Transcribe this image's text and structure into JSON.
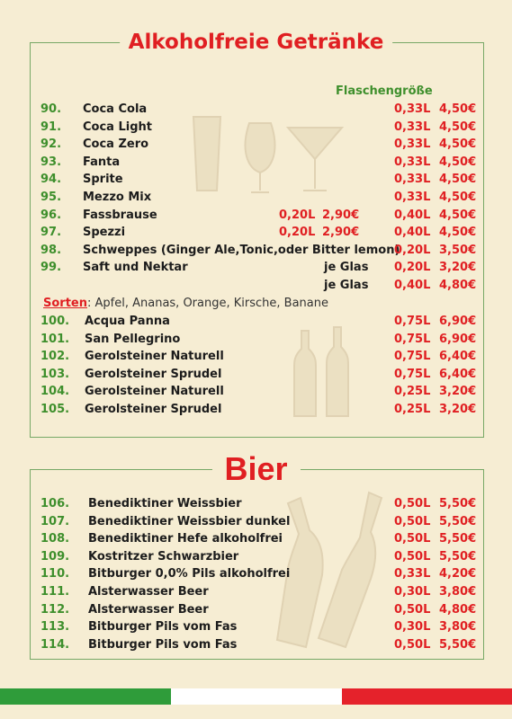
{
  "section1": {
    "title": "Alkoholfreie Getränke",
    "column_header": "Flaschengröße",
    "items": [
      {
        "num": "90.",
        "name": "Coca Cola",
        "vol": "0,33L",
        "price": "4,50€"
      },
      {
        "num": "91.",
        "name": "Coca Light",
        "vol": "0,33L",
        "price": "4,50€"
      },
      {
        "num": "92.",
        "name": "Coca Zero",
        "vol": "0,33L",
        "price": "4,50€"
      },
      {
        "num": "93.",
        "name": "Fanta",
        "vol": "0,33L",
        "price": "4,50€"
      },
      {
        "num": "94.",
        "name": "Sprite",
        "vol": "0,33L",
        "price": "4,50€"
      },
      {
        "num": "95.",
        "name": "Mezzo Mix",
        "vol": "0,33L",
        "price": "4,50€"
      },
      {
        "num": "96.",
        "name": "Fassbrause",
        "vol_small": "0,20L",
        "price_small": "2,90€",
        "vol": "0,40L",
        "price": "4,50€"
      },
      {
        "num": "97.",
        "name": "Spezzi",
        "vol_small": "0,20L",
        "price_small": "2,90€",
        "vol": "0,40L",
        "price": "4,50€"
      },
      {
        "num": "98.",
        "name": "Schweppes (Ginger Ale,Tonic,oder Bitter lemon)",
        "vol": "0,20L",
        "price": "3,50€"
      },
      {
        "num": "99.",
        "name": "Saft und Nektar",
        "glas": "je Glas",
        "vol": "0,20L",
        "price": "3,20€"
      },
      {
        "num": "",
        "name": "",
        "glas": "je Glas",
        "vol": "0,40L",
        "price": "4,80€"
      }
    ],
    "sorts_label": "Sorten",
    "sorts_text": ": Apfel, Ananas, Orange, Kirsche, Banane",
    "items2": [
      {
        "num": "100.",
        "name": "Acqua Panna",
        "vol": "0,75L",
        "price": "6,90€"
      },
      {
        "num": "101.",
        "name": "San Pellegrino",
        "vol": "0,75L",
        "price": "6,90€"
      },
      {
        "num": "102.",
        "name": "Gerolsteiner Naturell",
        "vol": "0,75L",
        "price": "6,40€"
      },
      {
        "num": "103.",
        "name": "Gerolsteiner Sprudel",
        "vol": "0,75L",
        "price": "6,40€"
      },
      {
        "num": "104.",
        "name": "Gerolsteiner Naturell",
        "vol": "0,25L",
        "price": "3,20€"
      },
      {
        "num": "105.",
        "name": "Gerolsteiner Sprudel",
        "vol": "0,25L",
        "price": "3,20€"
      }
    ]
  },
  "section2": {
    "title": "Bier",
    "items": [
      {
        "num": "106.",
        "name": "Benediktiner    Weissbier",
        "vol": "0,50L",
        "price": "5,50€"
      },
      {
        "num": "107.",
        "name": "Benediktiner   Weissbier dunkel",
        "vol": "0,50L",
        "price": "5,50€"
      },
      {
        "num": "108.",
        "name": "Benediktiner    Hefe alkoholfrei",
        "vol": "0,50L",
        "price": "5,50€"
      },
      {
        "num": "109.",
        "name": "Kostritzer Schwarzbier",
        "vol": "0,50L",
        "price": "5,50€"
      },
      {
        "num": "110.",
        "name": "Bitburger 0,0% Pils alkoholfrei",
        "vol": "0,33L",
        "price": "4,20€"
      },
      {
        "num": "111.",
        "name": "Alsterwasser Beer",
        "vol": "0,30L",
        "price": "3,80€"
      },
      {
        "num": "112.",
        "name": "Alsterwasser Beer",
        "vol": "0,50L",
        "price": "4,80€"
      },
      {
        "num": "113.",
        "name": "Bitburger Pils vom Fas",
        "vol": "0,30L",
        "price": "3,80€"
      },
      {
        "num": "114.",
        "name": "Bitburger Pils vom Fas",
        "vol": "0,50L",
        "price": "5,50€"
      }
    ]
  },
  "colors": {
    "accent_red": "#e01f22",
    "accent_green": "#3e8f2c",
    "background": "#f6edd3"
  },
  "decorations": [
    "drink-glasses-icon",
    "bottles-icon",
    "beer-bottles-icon"
  ]
}
